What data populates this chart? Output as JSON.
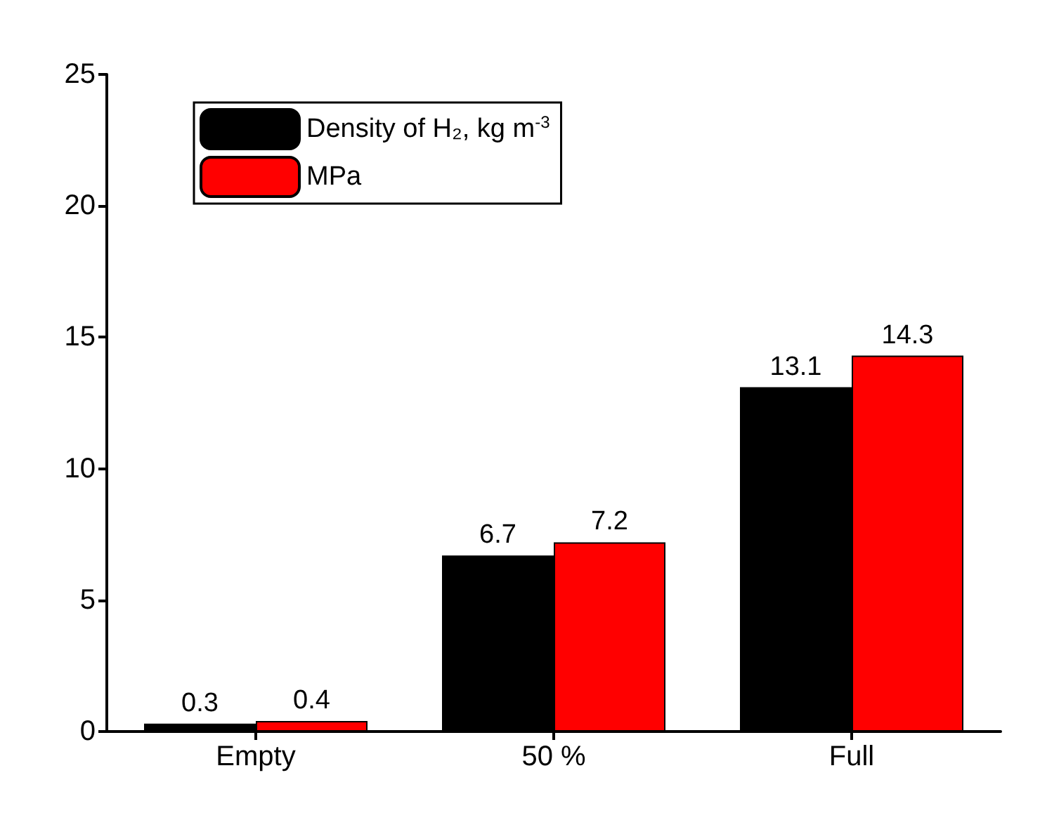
{
  "chart_data": {
    "type": "bar",
    "categories": [
      "Empty",
      "50 %",
      "Full"
    ],
    "series": [
      {
        "name": "Density of H₂, kg m$^{-3}$",
        "color": "#000000",
        "values": [
          0.3,
          6.7,
          13.1
        ]
      },
      {
        "name": "MPa",
        "color": "#ff0000",
        "values": [
          0.4,
          7.2,
          14.3
        ]
      }
    ],
    "ylim": [
      0,
      25
    ],
    "yticks": [
      0,
      5,
      10,
      15,
      20,
      25
    ],
    "grid": false,
    "legend": "top left",
    "data_labels": true
  }
}
